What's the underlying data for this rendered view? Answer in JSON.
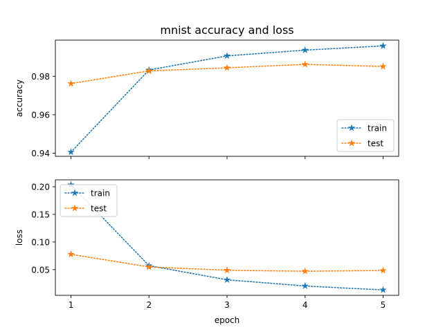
{
  "chart_data": [
    {
      "type": "line",
      "title": "mnist accuracy and loss",
      "xlabel": "",
      "ylabel": "accuracy",
      "x": [
        1,
        2,
        3,
        4,
        5
      ],
      "xticks": [
        "1",
        "2",
        "3",
        "4",
        "5"
      ],
      "yticks": [
        "0.94",
        "0.96",
        "0.98"
      ],
      "ytick_values": [
        0.94,
        0.96,
        0.98
      ],
      "xlim": [
        0.8,
        5.2
      ],
      "ylim": [
        0.9384,
        0.9988
      ],
      "grid": false,
      "legend_position": "lower-right",
      "series": [
        {
          "name": "train",
          "color": "#1f77b4",
          "linestyle": "dotted",
          "marker": "star",
          "values": [
            0.9406,
            0.9833,
            0.9906,
            0.9936,
            0.9958
          ]
        },
        {
          "name": "test",
          "color": "#ff7f0e",
          "linestyle": "dotted",
          "marker": "star",
          "values": [
            0.9762,
            0.9828,
            0.9844,
            0.9862,
            0.9851
          ]
        }
      ]
    },
    {
      "type": "line",
      "title": "",
      "xlabel": "epoch",
      "ylabel": "loss",
      "x": [
        1,
        2,
        3,
        4,
        5
      ],
      "xticks": [
        "1",
        "2",
        "3",
        "4",
        "5"
      ],
      "yticks": [
        "0.05",
        "0.10",
        "0.15",
        "0.20"
      ],
      "ytick_values": [
        0.05,
        0.1,
        0.15,
        0.2
      ],
      "xlim": [
        0.8,
        5.2
      ],
      "ylim": [
        0.0035,
        0.2125
      ],
      "grid": false,
      "legend_position": "upper-left",
      "series": [
        {
          "name": "train",
          "color": "#1f77b4",
          "linestyle": "dotted",
          "marker": "star",
          "values": [
            0.2035,
            0.0572,
            0.0316,
            0.0204,
            0.0133
          ]
        },
        {
          "name": "test",
          "color": "#ff7f0e",
          "linestyle": "dotted",
          "marker": "star",
          "values": [
            0.0778,
            0.0549,
            0.0489,
            0.0471,
            0.0485
          ]
        }
      ]
    }
  ]
}
